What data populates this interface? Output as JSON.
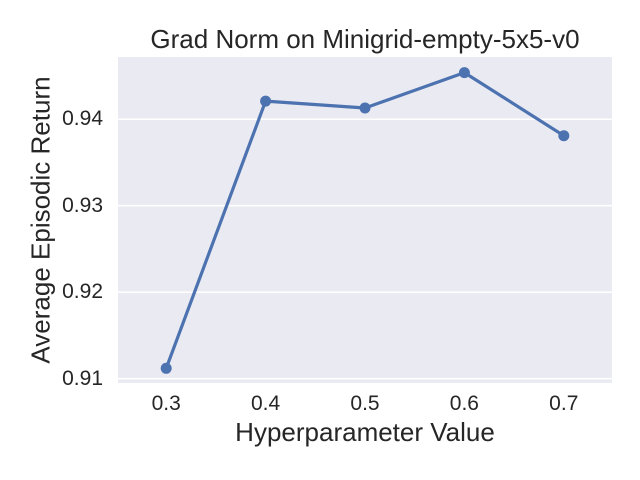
{
  "chart_data": {
    "type": "line",
    "title": "Grad Norm on Minigrid-empty-5x5-v0",
    "xlabel": "Hyperparameter Value",
    "ylabel": "Average Episodic Return",
    "x": [
      0.3,
      0.4,
      0.5,
      0.6,
      0.7
    ],
    "series": [
      {
        "name": "Grad Norm",
        "values": [
          0.9112,
          0.9421,
          0.9413,
          0.9454,
          0.9381
        ]
      }
    ],
    "xticks": [
      0.3,
      0.4,
      0.5,
      0.6,
      0.7
    ],
    "xtick_labels": [
      "0.3",
      "0.4",
      "0.5",
      "0.6",
      "0.7"
    ],
    "yticks": [
      0.91,
      0.92,
      0.93,
      0.94
    ],
    "ytick_labels": [
      "0.91",
      "0.92",
      "0.93",
      "0.94"
    ],
    "xlim": [
      0.2515,
      0.7485
    ],
    "ylim": [
      0.9095,
      0.9472
    ],
    "grid": {
      "axis": "y",
      "on": true
    },
    "legend": "none",
    "colors": {
      "line": "#4C72B0",
      "marker": "#4C72B0",
      "plot_background": "#EAEAF2",
      "gridline": "#FFFFFF",
      "text": "#262626",
      "figure_background": "#FFFFFF"
    }
  }
}
